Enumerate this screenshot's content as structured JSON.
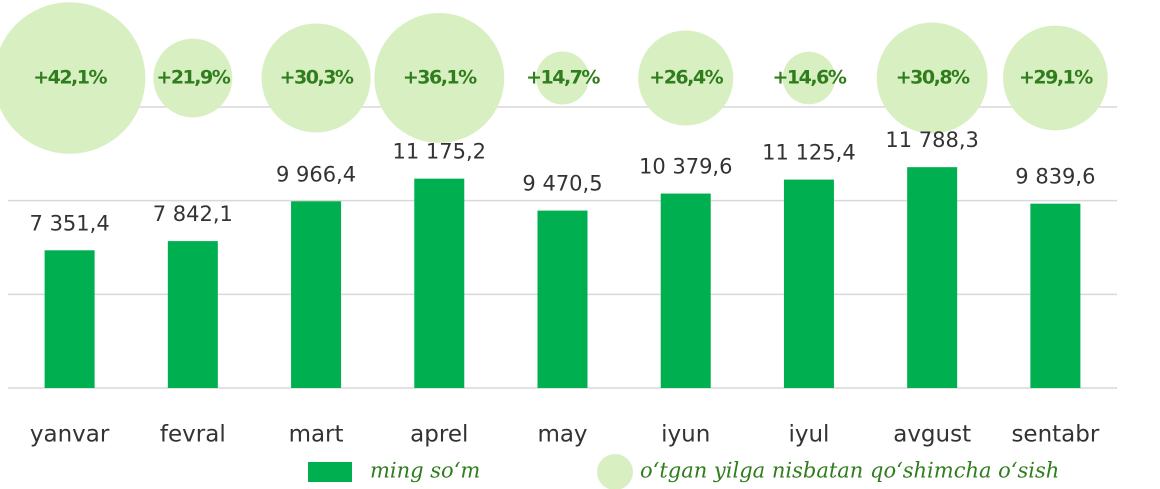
{
  "chart_data": {
    "type": "bar",
    "categories": [
      "yanvar",
      "fevral",
      "mart",
      "aprel",
      "may",
      "iyun",
      "iyul",
      "avgust",
      "sentabr"
    ],
    "series": [
      {
        "name": "ming so‘m",
        "color": "#00b050",
        "values": [
          7351.4,
          7842.1,
          9966.4,
          11175.2,
          9470.5,
          10379.6,
          11125.4,
          11788.3,
          9839.6
        ],
        "value_labels": [
          "7 351,4",
          "7 842,1",
          "9 966,4",
          "11 175,2",
          "9 470,5",
          "10 379,6",
          "11 125,4",
          "11 788,3",
          "9 839,6"
        ]
      },
      {
        "name": "o‘tgan yilga nisbatan qo‘shimcha o‘sish",
        "type": "bubble",
        "color": "#d8efc2",
        "values": [
          42.1,
          21.9,
          30.3,
          36.1,
          14.7,
          26.4,
          14.6,
          30.8,
          29.1
        ],
        "value_labels": [
          "+42,1%",
          "+21,9%",
          "+30,3%",
          "+36,1%",
          "+14,7%",
          "+26,4%",
          "+14,6%",
          "+30,8%",
          "+29,1%"
        ]
      }
    ],
    "ylim": [
      0,
      15000
    ],
    "yticks": [
      0,
      5000,
      10000,
      15000
    ],
    "grid": true
  }
}
